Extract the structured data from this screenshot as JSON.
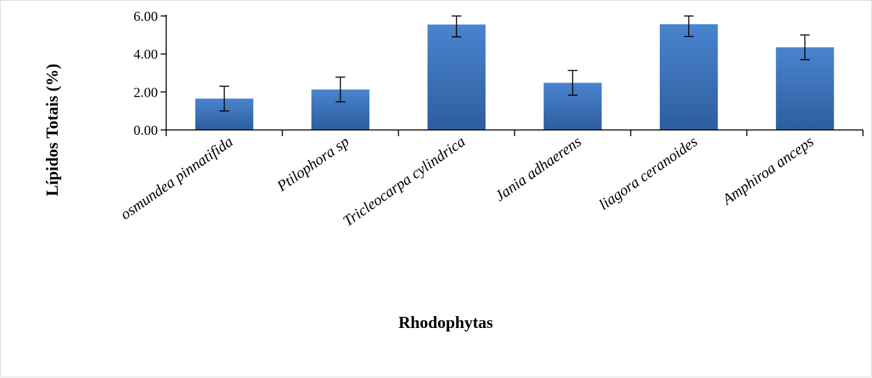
{
  "chart_data": {
    "type": "bar",
    "title": "",
    "xlabel": "Rhodophytas",
    "ylabel": "Lípidos Totais (%)",
    "categories": [
      "osmundea pinnatifida",
      "Ptilophora sp",
      "Tricleocarpa cylindrica",
      "Jania adhaerens",
      "liagora ceranoides",
      "Amphiroa anceps"
    ],
    "values": [
      1.65,
      2.13,
      5.55,
      2.48,
      5.57,
      4.35
    ],
    "error": [
      0.65,
      0.65,
      0.65,
      0.65,
      0.65,
      0.65
    ],
    "ylim": [
      0,
      6
    ],
    "yticks": [
      "0.00",
      "2.00",
      "4.00",
      "6.00"
    ],
    "ytick_values": [
      0,
      2,
      4,
      6
    ],
    "grid": false,
    "legend": "none",
    "bar_color": "#3a70b8"
  }
}
